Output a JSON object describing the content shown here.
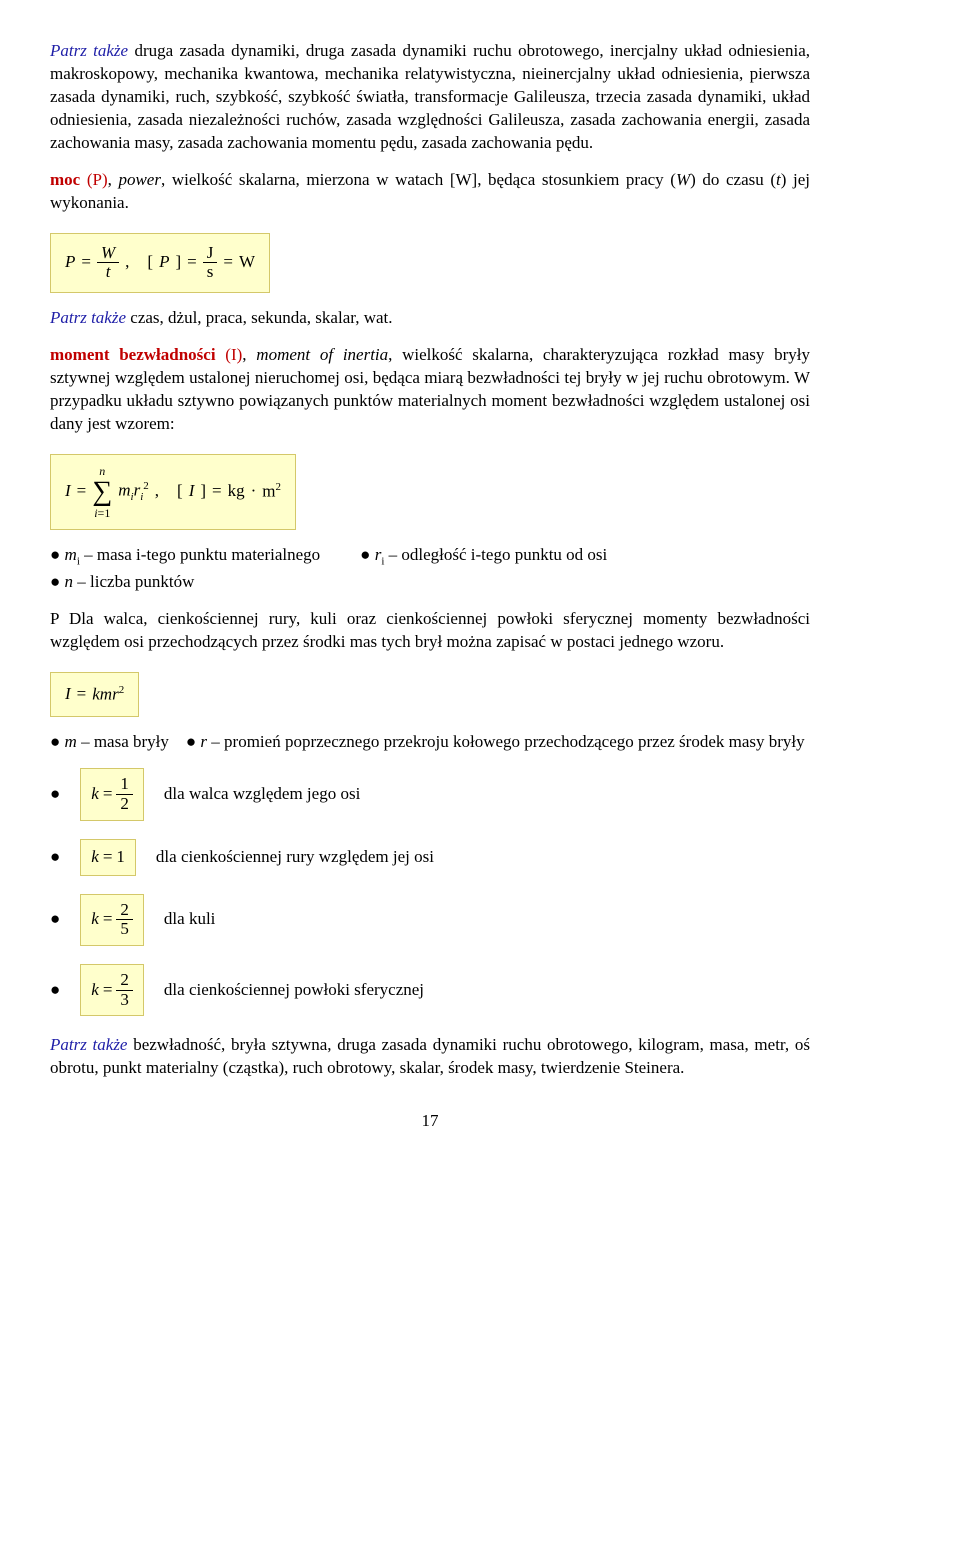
{
  "colors": {
    "term_head": "#c00000",
    "see_also": "#2020a8",
    "formula_bg": "#ffffcc",
    "formula_border": "#d4c86a",
    "text": "#000000",
    "background": "#ffffff"
  },
  "typography": {
    "family": "Times New Roman",
    "body_size_pt": 13,
    "sub_size_pt": 8
  },
  "see_also_label": "Patrz także",
  "intro": {
    "rest": " druga zasada dynamiki, druga zasada dynamiki ruchu obrotowego, inercjalny układ odniesienia, makroskopowy, mechanika kwantowa, mechanika relatywistyczna, nieinercjalny układ odniesienia, pierwsza zasada dynamiki, ruch, szybkość, szybkość światła, transformacje Galileusza, trzecia zasada dynamiki, układ odniesienia, zasada niezależności ruchów, zasada względności Galileusza, zasada zachowania energii, zasada zachowania masy, zasada zachowania momentu pędu, zasada zachowania pędu."
  },
  "moc": {
    "head": "moc",
    "symbol": " (P)",
    "sep": ", ",
    "eng": "power",
    "body1": ", wielkość skalarna, mierzona w watach [W], będąca stosunkiem pracy (",
    "work_sym": "W",
    "body2": ") do czasu (",
    "time_sym": "t",
    "body3": ") jej wykonania.",
    "formula": {
      "P": "P",
      "eq": "=",
      "W": "W",
      "t": "t",
      "comma": ",",
      "lb": "[",
      "rb": "]",
      "J": "J",
      "s": "s",
      "Wunit": "W"
    },
    "see_also_rest": " czas, dżul, praca, sekunda, skalar, wat."
  },
  "moment": {
    "head": "moment bezwładności",
    "symbol": " (I)",
    "sep": ", ",
    "eng": "moment of inertia",
    "body": ", wielkość skalarna, charakteryzująca rozkład masy bryły sztywnej względem ustalonej nieruchomej osi, będąca miarą bezwładności tej bryły w jej ruchu obrotowym. W przypadku układu sztywno powiązanych punktów materialnych moment bezwładności względem ustalonej osi dany jest wzorem:",
    "formula": {
      "I": "I",
      "eq": "=",
      "n": "n",
      "i1": "i",
      "one": "1",
      "m": "m",
      "r": "r",
      "sq": "2",
      "comma": ",",
      "lb": "[",
      "rb": "]",
      "kg": "kg",
      "dot": "·",
      "mU": "m"
    },
    "bullets": {
      "mi": "m",
      "mi_sub": "i",
      "mi_txt": " – masa i-tego punktu materialnego",
      "ri": "r",
      "ri_sub": "i",
      "ri_txt": " – odległość i-tego punktu od osi",
      "n": "n",
      "n_txt": " – liczba punktów"
    },
    "note_lead": "P",
    "note": " Dla walca, cienkościennej rury, kuli oraz cienkościennej powłoki sferycznej momenty bezwładności względem osi przechodzących przez środki mas tych brył można zapisać w postaci jednego wzoru.",
    "formula2": {
      "I": "I",
      "eq": "=",
      "kmr": "kmr",
      "sq": "2"
    },
    "bullets2": {
      "m": "m",
      "m_txt": " – masa bryły",
      "r": "r",
      "r_txt": " – promień poprzecznego przekroju kołowego przechodzącego przez środek masy bryły"
    },
    "k_rows": [
      {
        "num": "1",
        "den": "2",
        "plain": null,
        "txt": "dla walca względem jego osi"
      },
      {
        "num": null,
        "den": null,
        "plain": "1",
        "txt": "dla cienkościennej rury względem jej osi"
      },
      {
        "num": "2",
        "den": "5",
        "plain": null,
        "txt": "dla kuli"
      },
      {
        "num": "2",
        "den": "3",
        "plain": null,
        "txt": "dla cienkościennej powłoki sferycznej"
      }
    ],
    "k_sym": "k",
    "k_eq": "=",
    "see_also_rest": " bezwładność, bryła sztywna, druga zasada dynamiki ruchu obrotowego, kilogram, masa, metr, oś obrotu, punkt materialny (cząstka), ruch obrotowy, skalar, środek masy, twierdzenie Steinera."
  },
  "page_number": "17"
}
